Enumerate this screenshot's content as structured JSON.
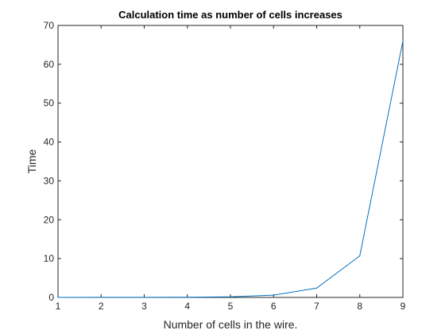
{
  "chart_data": {
    "type": "line",
    "title": "Calculation time as number of cells increases",
    "xlabel": "Number of cells in the wire.",
    "ylabel": "Time",
    "xlim": [
      1,
      9
    ],
    "ylim": [
      0,
      70
    ],
    "xticks": [
      1,
      2,
      3,
      4,
      5,
      6,
      7,
      8,
      9
    ],
    "yticks": [
      0,
      10,
      20,
      30,
      40,
      50,
      60,
      70
    ],
    "grid": false,
    "series": [
      {
        "color": "#0072bd",
        "x": [
          1,
          2,
          3,
          4,
          5,
          6,
          7,
          8,
          9
        ],
        "y": [
          0.01,
          0.02,
          0.03,
          0.05,
          0.15,
          0.6,
          2.4,
          10.7,
          66
        ]
      }
    ]
  }
}
